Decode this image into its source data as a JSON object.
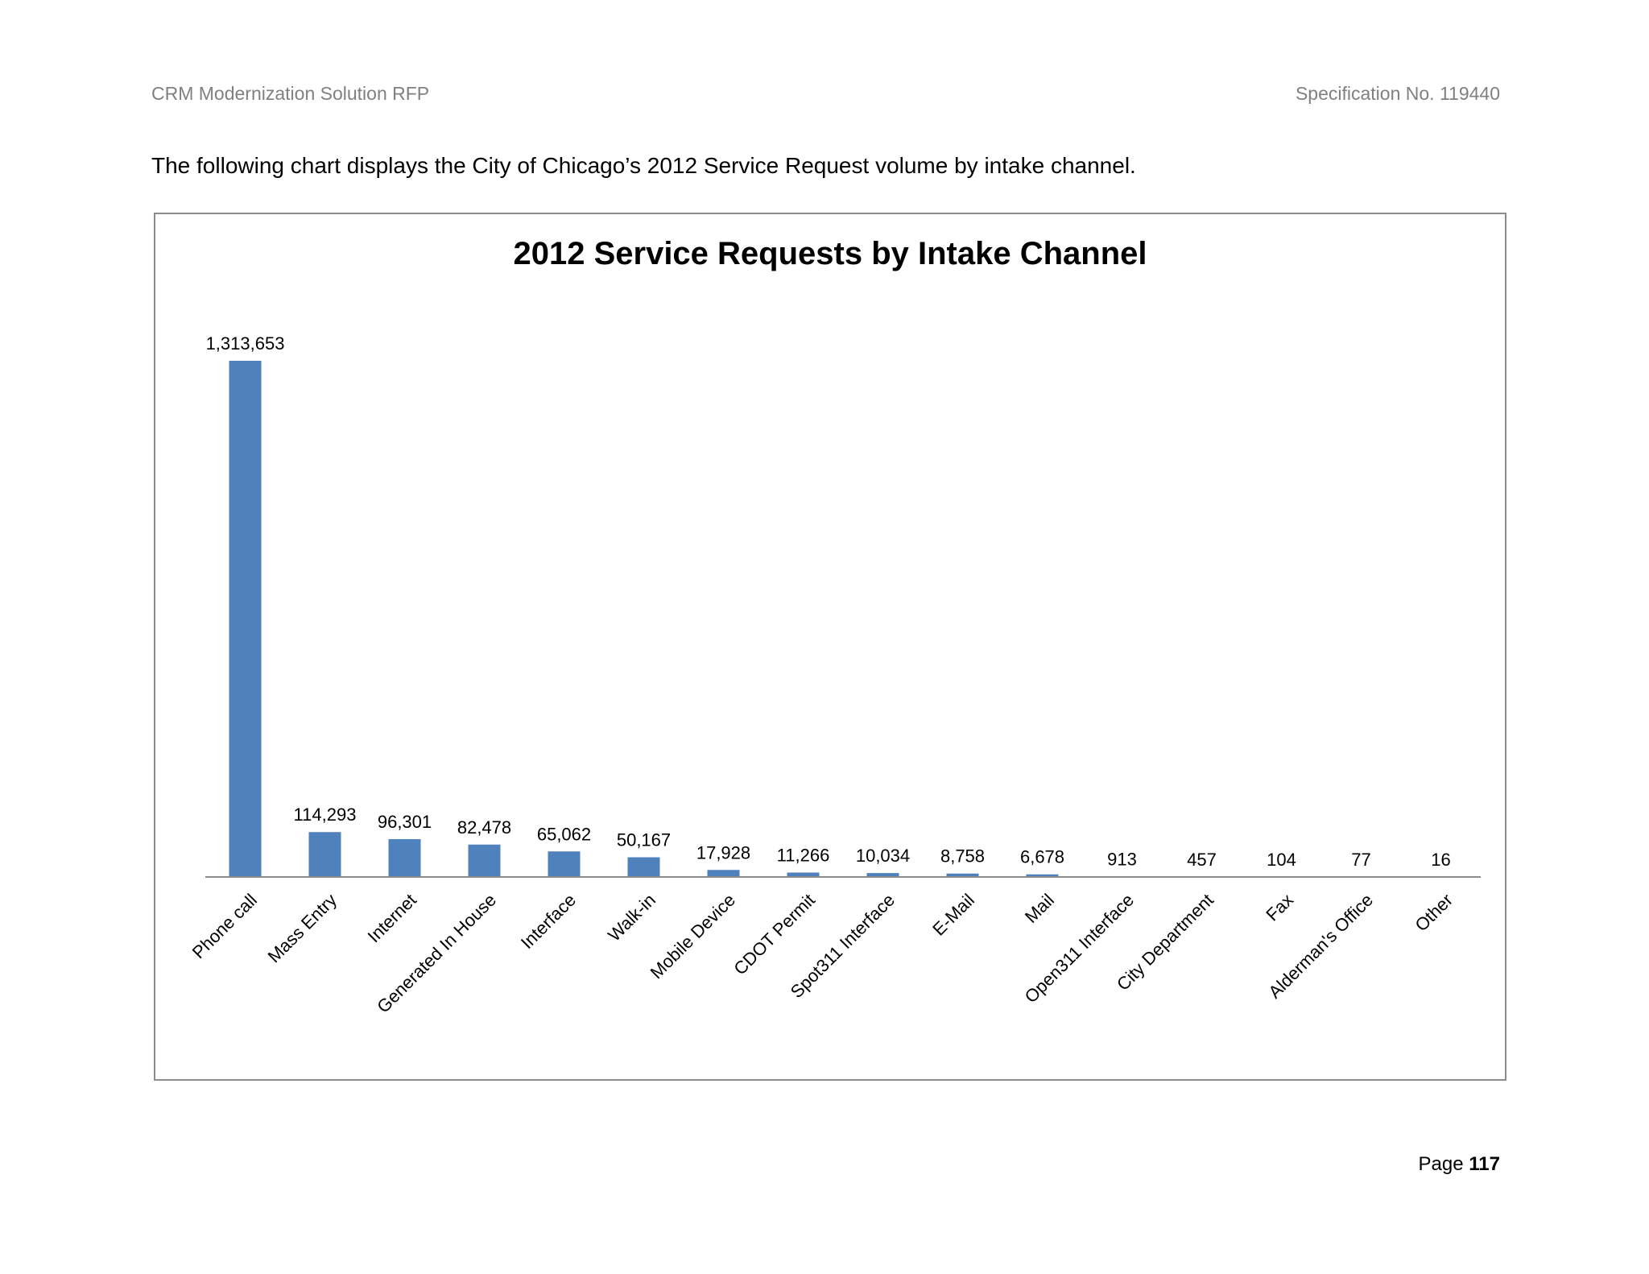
{
  "header": {
    "left": "CRM Modernization Solution RFP",
    "right": "Specification No. 119440"
  },
  "intro_text": "The following chart displays the City of Chicago’s 2012 Service Request volume by intake channel.",
  "footer": {
    "page_label": "Page",
    "page_number": "117"
  },
  "colors": {
    "bar": "#4f81bd",
    "axis": "#8c8c8c"
  },
  "chart_data": {
    "type": "bar",
    "title": "2012 Service Requests by Intake Channel",
    "xlabel": "",
    "ylabel": "",
    "grid": false,
    "legend": "none",
    "ylim": [
      0,
      1313653
    ],
    "categories": [
      "Phone call",
      "Mass Entry",
      "Internet",
      "Generated In House",
      "Interface",
      "Walk-in",
      "Mobile Device",
      "CDOT Permit",
      "Spot311 Interface",
      "E-Mail",
      "Mail",
      "Open311 Interface",
      "City Department",
      "Fax",
      "Alderman's Office",
      "Other"
    ],
    "values": [
      1313653,
      114293,
      96301,
      82478,
      65062,
      50167,
      17928,
      11266,
      10034,
      8758,
      6678,
      913,
      457,
      104,
      77,
      16
    ],
    "data_labels": [
      "1,313,653",
      "114,293",
      "96,301",
      "82,478",
      "65,062",
      "50,167",
      "17,928",
      "11,266",
      "10,034",
      "8,758",
      "6,678",
      "913",
      "457",
      "104",
      "77",
      "16"
    ]
  }
}
